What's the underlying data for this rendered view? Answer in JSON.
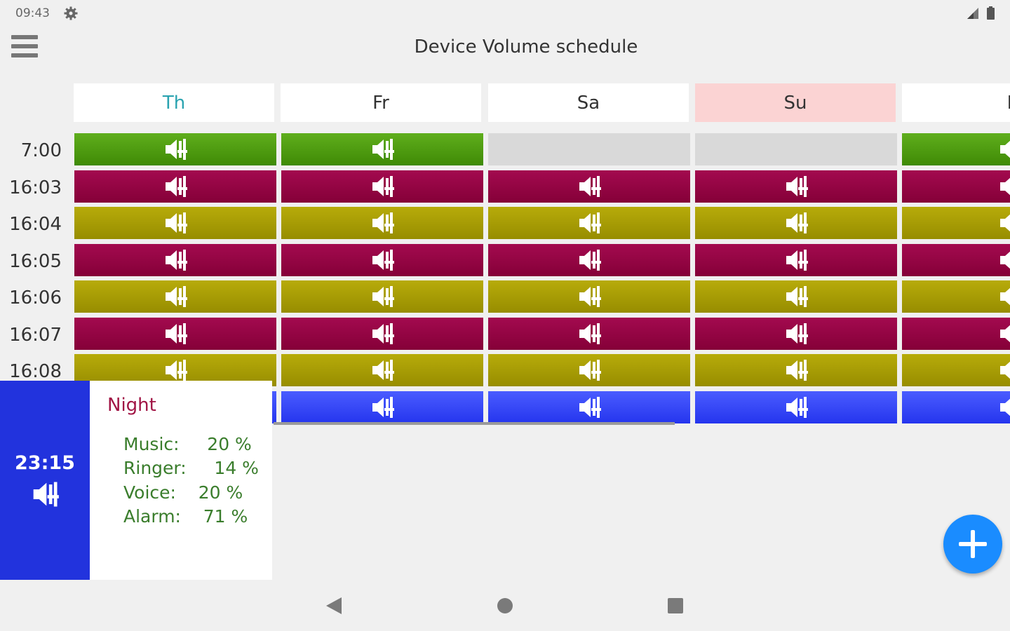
{
  "status": {
    "time": "09:43"
  },
  "app": {
    "title": "Device Volume schedule"
  },
  "days": [
    "Th",
    "Fr",
    "Sa",
    "Su",
    "M"
  ],
  "times": [
    "7:00",
    "16:03",
    "16:04",
    "16:05",
    "16:06",
    "16:07",
    "16:08"
  ],
  "rows": [
    [
      "green",
      "green",
      "empty",
      "empty",
      "green"
    ],
    [
      "red",
      "red",
      "red",
      "red",
      "red"
    ],
    [
      "olive",
      "olive",
      "olive",
      "olive",
      "olive"
    ],
    [
      "red",
      "red",
      "red",
      "red",
      "red"
    ],
    [
      "olive",
      "olive",
      "olive",
      "olive",
      "olive"
    ],
    [
      "red",
      "red",
      "red",
      "red",
      "red"
    ],
    [
      "olive",
      "olive",
      "olive",
      "olive",
      "olive"
    ],
    [
      "blue",
      "blue",
      "blue",
      "blue",
      "blue"
    ]
  ],
  "colors": {
    "green": "#4f9e12",
    "red": "#94004a",
    "olive": "#a89d00",
    "blue": "#3344ff"
  },
  "icon": "speaker-volume-icon",
  "popup": {
    "time": "23:15",
    "name": "Night",
    "music": "Music:     20 %",
    "ringer": "Ringer:     14 %",
    "voice": "Voice:    20 %",
    "alarm": "Alarm:    71 %"
  }
}
